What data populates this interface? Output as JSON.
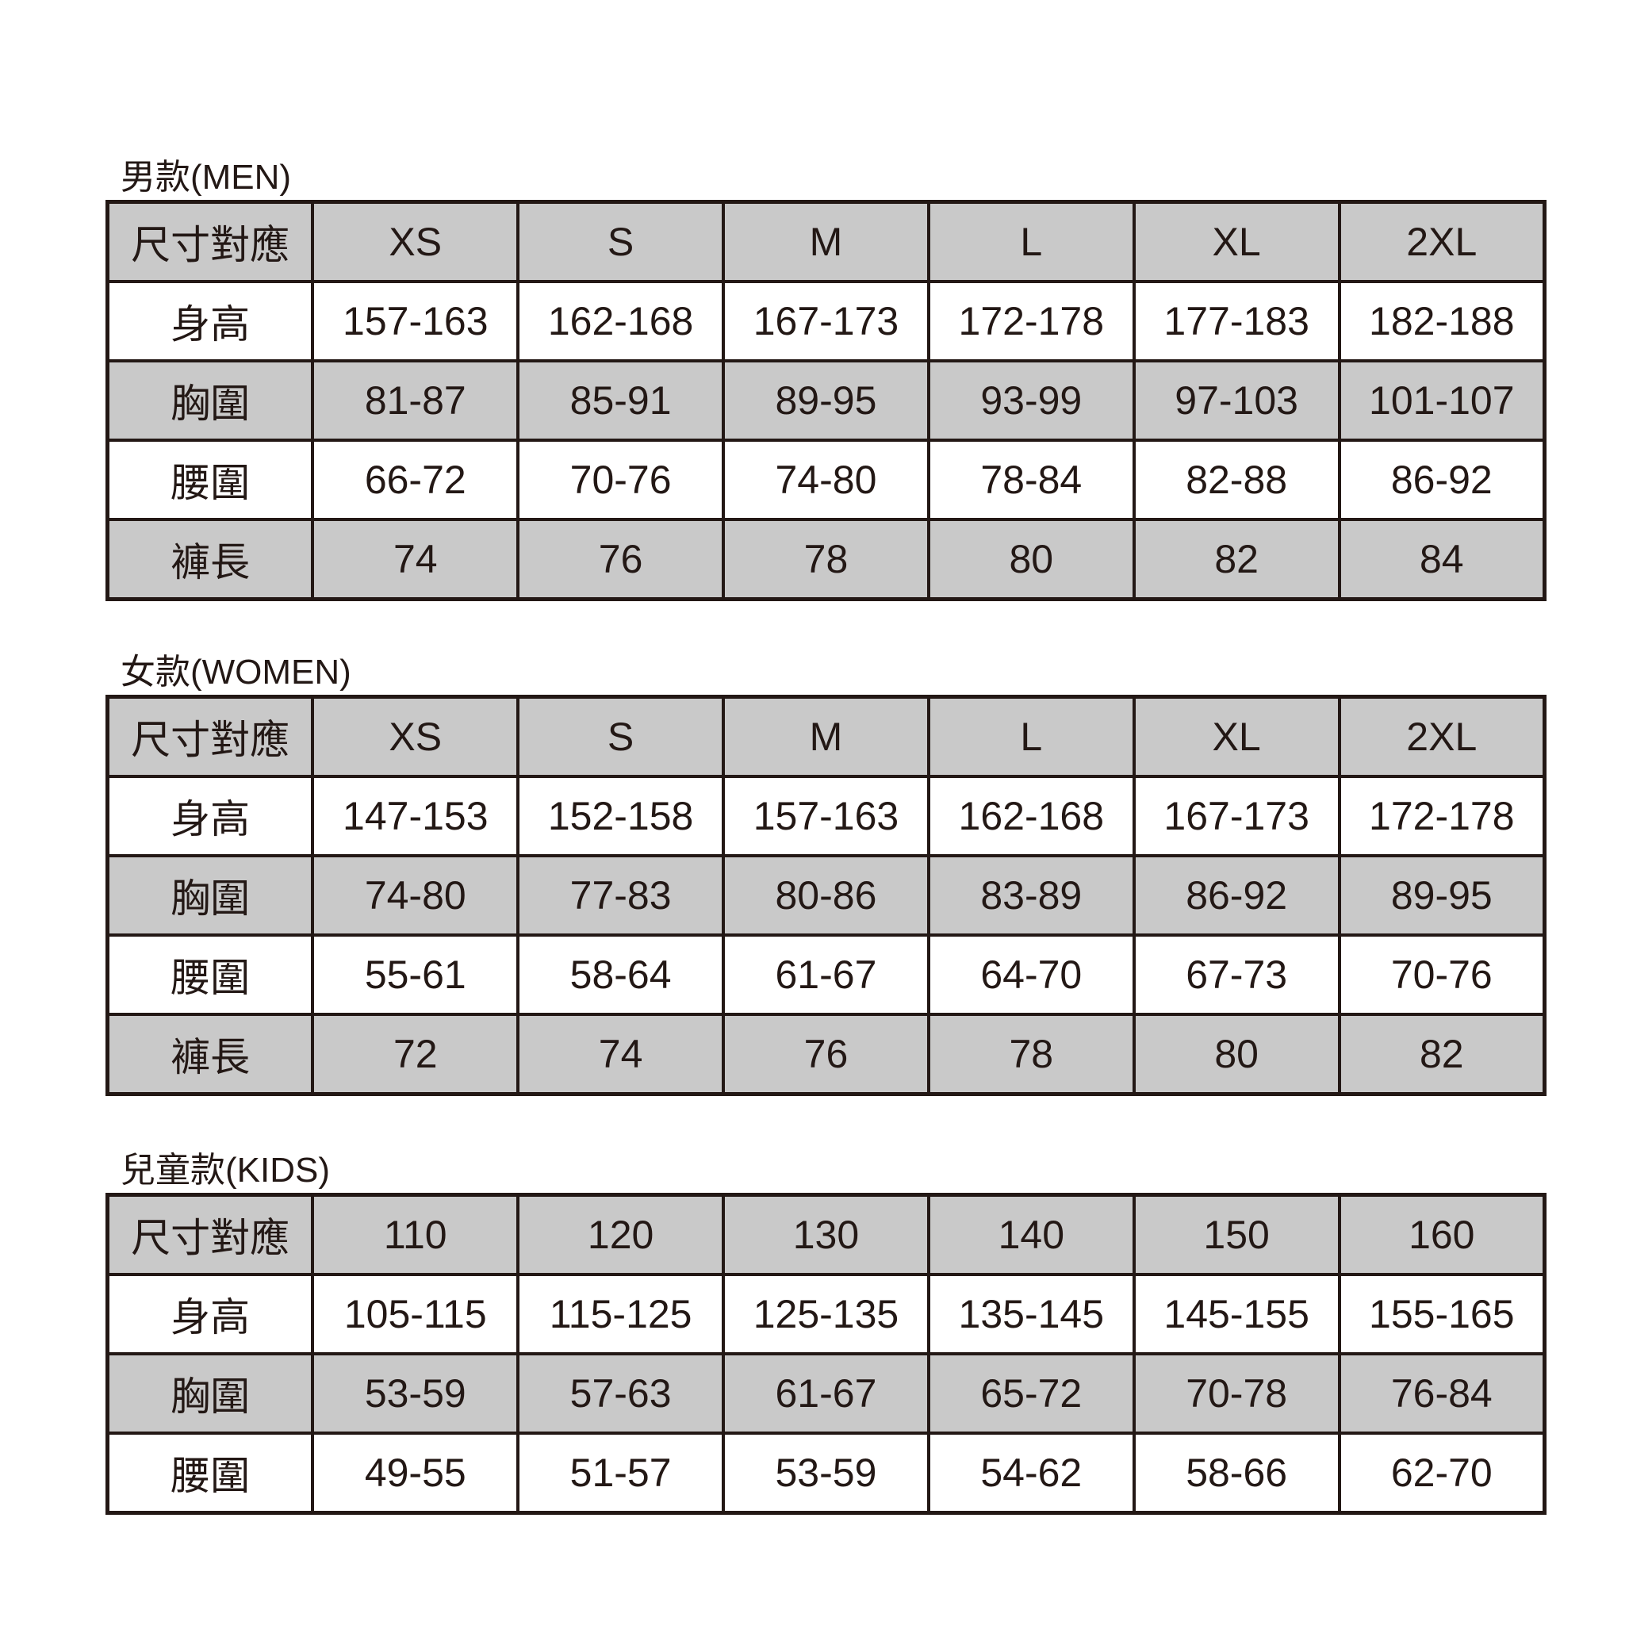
{
  "colors": {
    "background": "#ffffff",
    "header_fill": "#c9c9c9",
    "row_alt_fill": "#ffffff",
    "border": "#231815",
    "text": "#231815"
  },
  "tables": [
    {
      "title": "男款(MEN)",
      "header_label": "尺寸對應",
      "sizes": [
        "XS",
        "S",
        "M",
        "L",
        "XL",
        "2XL"
      ],
      "rows": [
        {
          "label": "身高",
          "values": [
            "157-163",
            "162-168",
            "167-173",
            "172-178",
            "177-183",
            "182-188"
          ]
        },
        {
          "label": "胸圍",
          "values": [
            "81-87",
            "85-91",
            "89-95",
            "93-99",
            "97-103",
            "101-107"
          ]
        },
        {
          "label": "腰圍",
          "values": [
            "66-72",
            "70-76",
            "74-80",
            "78-84",
            "82-88",
            "86-92"
          ]
        },
        {
          "label": "褲長",
          "values": [
            "74",
            "76",
            "78",
            "80",
            "82",
            "84"
          ]
        }
      ]
    },
    {
      "title": "女款(WOMEN)",
      "header_label": "尺寸對應",
      "sizes": [
        "XS",
        "S",
        "M",
        "L",
        "XL",
        "2XL"
      ],
      "rows": [
        {
          "label": "身高",
          "values": [
            "147-153",
            "152-158",
            "157-163",
            "162-168",
            "167-173",
            "172-178"
          ]
        },
        {
          "label": "胸圍",
          "values": [
            "74-80",
            "77-83",
            "80-86",
            "83-89",
            "86-92",
            "89-95"
          ]
        },
        {
          "label": "腰圍",
          "values": [
            "55-61",
            "58-64",
            "61-67",
            "64-70",
            "67-73",
            "70-76"
          ]
        },
        {
          "label": "褲長",
          "values": [
            "72",
            "74",
            "76",
            "78",
            "80",
            "82"
          ]
        }
      ]
    },
    {
      "title": "兒童款(KIDS)",
      "header_label": "尺寸對應",
      "sizes": [
        "110",
        "120",
        "130",
        "140",
        "150",
        "160"
      ],
      "rows": [
        {
          "label": "身高",
          "values": [
            "105-115",
            "115-125",
            "125-135",
            "135-145",
            "145-155",
            "155-165"
          ]
        },
        {
          "label": "胸圍",
          "values": [
            "53-59",
            "57-63",
            "61-67",
            "65-72",
            "70-78",
            "76-84"
          ]
        },
        {
          "label": "腰圍",
          "values": [
            "49-55",
            "51-57",
            "53-59",
            "54-62",
            "58-66",
            "62-70"
          ]
        }
      ]
    }
  ]
}
